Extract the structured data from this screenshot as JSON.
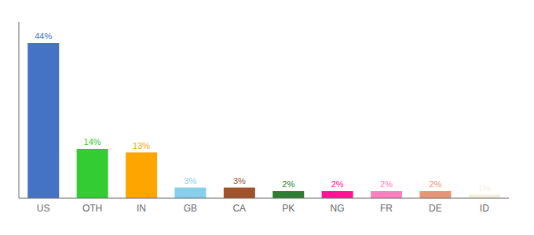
{
  "chart_data": {
    "type": "bar",
    "categories": [
      "US",
      "OTH",
      "IN",
      "GB",
      "CA",
      "PK",
      "NG",
      "FR",
      "DE",
      "ID"
    ],
    "values": [
      44,
      14,
      13,
      3,
      3,
      2,
      2,
      2,
      2,
      1
    ],
    "value_labels": [
      "44%",
      "14%",
      "13%",
      "3%",
      "3%",
      "2%",
      "2%",
      "2%",
      "2%",
      "1%"
    ],
    "colors": [
      "#4472C4",
      "#33CC33",
      "#FFA500",
      "#87CEEB",
      "#A0522D",
      "#2E7D32",
      "#FF1493",
      "#FF80C0",
      "#E8967A",
      "#F5F0DC"
    ],
    "ylim": [
      0,
      50
    ],
    "grid": false,
    "data_labels": true,
    "tick_labels": "x"
  }
}
